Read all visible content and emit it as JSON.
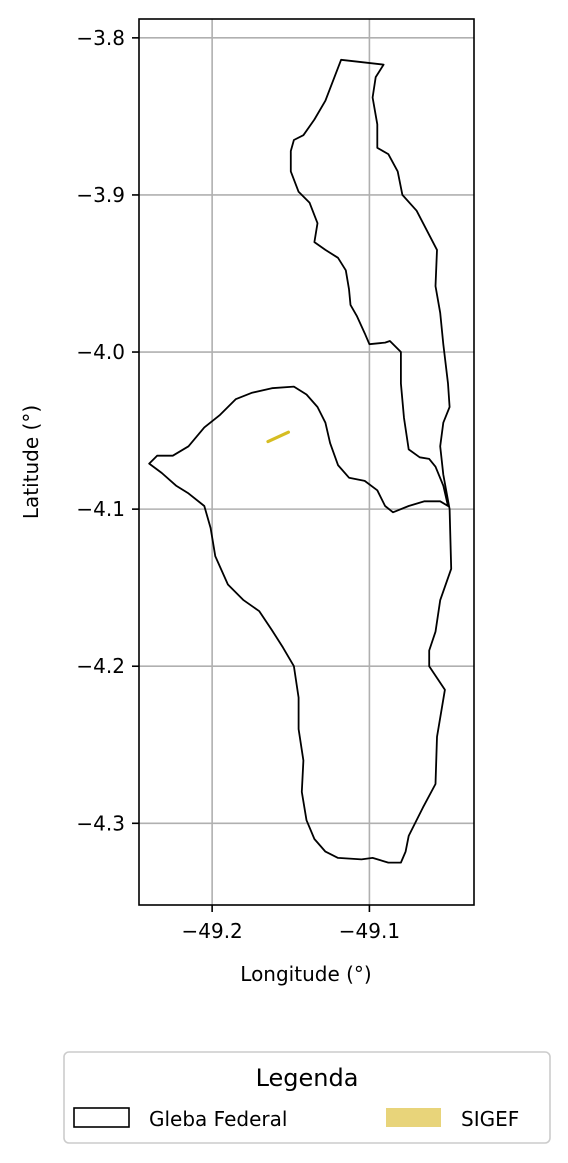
{
  "chart_data": {
    "type": "map",
    "xlabel": "Longitude (°)",
    "ylabel": "Latitude (°)",
    "xlim": [
      -49.2465,
      -49.0335
    ],
    "ylim": [
      -4.352,
      -3.788
    ],
    "x_ticks": [
      -49.2,
      -49.1
    ],
    "x_tick_labels": [
      "−49.2",
      "−49.1"
    ],
    "y_ticks": [
      -3.8,
      -3.9,
      -4.0,
      -4.1,
      -4.2,
      -4.3
    ],
    "y_tick_labels": [
      "−3.8",
      "−3.9",
      "−4.0",
      "−4.1",
      "−4.2",
      "−4.3"
    ],
    "grid": true,
    "legend": {
      "title": "Legenda",
      "placement": "bottom-center",
      "entries": [
        {
          "label": "Gleba Federal",
          "style": "outline",
          "color": "#000000"
        },
        {
          "label": "SIGEF",
          "style": "fill",
          "color": "#e8d47a"
        }
      ]
    },
    "layers": [
      {
        "name": "Gleba Federal",
        "stroke": "#000000",
        "fill": "none",
        "polygons": [
          [
            [
              -49.118,
              -3.814
            ],
            [
              -49.091,
              -3.817
            ],
            [
              -49.096,
              -3.825
            ],
            [
              -49.098,
              -3.838
            ],
            [
              -49.095,
              -3.855
            ],
            [
              -49.095,
              -3.87
            ],
            [
              -49.088,
              -3.874
            ],
            [
              -49.082,
              -3.885
            ],
            [
              -49.079,
              -3.9
            ],
            [
              -49.07,
              -3.91
            ],
            [
              -49.057,
              -3.935
            ],
            [
              -49.058,
              -3.958
            ],
            [
              -49.055,
              -3.975
            ],
            [
              -49.053,
              -3.995
            ],
            [
              -49.05,
              -4.02
            ],
            [
              -49.049,
              -4.035
            ],
            [
              -49.053,
              -4.045
            ],
            [
              -49.055,
              -4.06
            ],
            [
              -49.053,
              -4.078
            ],
            [
              -49.049,
              -4.1
            ],
            [
              -49.048,
              -4.138
            ],
            [
              -49.055,
              -4.158
            ],
            [
              -49.058,
              -4.178
            ],
            [
              -49.062,
              -4.19
            ],
            [
              -49.062,
              -4.2
            ],
            [
              -49.052,
              -4.215
            ],
            [
              -49.057,
              -4.245
            ],
            [
              -49.058,
              -4.275
            ],
            [
              -49.066,
              -4.29
            ],
            [
              -49.075,
              -4.308
            ],
            [
              -49.077,
              -4.318
            ],
            [
              -49.08,
              -4.325
            ],
            [
              -49.088,
              -4.325
            ],
            [
              -49.098,
              -4.322
            ],
            [
              -49.105,
              -4.323
            ],
            [
              -49.12,
              -4.322
            ],
            [
              -49.128,
              -4.318
            ],
            [
              -49.135,
              -4.31
            ],
            [
              -49.14,
              -4.298
            ],
            [
              -49.143,
              -4.28
            ],
            [
              -49.142,
              -4.26
            ],
            [
              -49.145,
              -4.24
            ],
            [
              -49.145,
              -4.22
            ],
            [
              -49.148,
              -4.2
            ],
            [
              -49.155,
              -4.188
            ],
            [
              -49.162,
              -4.177
            ],
            [
              -49.17,
              -4.165
            ],
            [
              -49.18,
              -4.158
            ],
            [
              -49.19,
              -4.148
            ],
            [
              -49.198,
              -4.13
            ],
            [
              -49.201,
              -4.112
            ],
            [
              -49.205,
              -4.098
            ],
            [
              -49.215,
              -4.09
            ],
            [
              -49.223,
              -4.085
            ],
            [
              -49.232,
              -4.077
            ],
            [
              -49.24,
              -4.071
            ],
            [
              -49.235,
              -4.066
            ],
            [
              -49.225,
              -4.066
            ],
            [
              -49.215,
              -4.06
            ],
            [
              -49.205,
              -4.048
            ],
            [
              -49.195,
              -4.04
            ],
            [
              -49.185,
              -4.03
            ],
            [
              -49.175,
              -4.026
            ],
            [
              -49.162,
              -4.023
            ],
            [
              -49.148,
              -4.022
            ],
            [
              -49.14,
              -4.027
            ],
            [
              -49.133,
              -4.035
            ],
            [
              -49.128,
              -4.045
            ],
            [
              -49.125,
              -4.058
            ],
            [
              -49.12,
              -4.072
            ],
            [
              -49.113,
              -4.08
            ],
            [
              -49.103,
              -4.082
            ],
            [
              -49.095,
              -4.088
            ],
            [
              -49.09,
              -4.098
            ],
            [
              -49.085,
              -4.102
            ],
            [
              -49.075,
              -4.098
            ],
            [
              -49.065,
              -4.095
            ],
            [
              -49.055,
              -4.095
            ],
            [
              -49.05,
              -4.098
            ],
            [
              -49.053,
              -4.085
            ],
            [
              -49.058,
              -4.073
            ],
            [
              -49.062,
              -4.068
            ],
            [
              -49.068,
              -4.067
            ],
            [
              -49.075,
              -4.062
            ],
            [
              -49.078,
              -4.042
            ],
            [
              -49.08,
              -4.02
            ],
            [
              -49.08,
              -4.0
            ],
            [
              -49.087,
              -3.993
            ],
            [
              -49.09,
              -3.994
            ],
            [
              -49.1,
              -3.995
            ],
            [
              -49.103,
              -3.988
            ],
            [
              -49.108,
              -3.977
            ],
            [
              -49.112,
              -3.97
            ],
            [
              -49.113,
              -3.96
            ],
            [
              -49.115,
              -3.948
            ],
            [
              -49.12,
              -3.94
            ],
            [
              -49.128,
              -3.935
            ],
            [
              -49.135,
              -3.93
            ],
            [
              -49.133,
              -3.918
            ],
            [
              -49.138,
              -3.905
            ],
            [
              -49.145,
              -3.898
            ],
            [
              -49.15,
              -3.885
            ],
            [
              -49.15,
              -3.872
            ],
            [
              -49.148,
              -3.865
            ],
            [
              -49.142,
              -3.862
            ],
            [
              -49.135,
              -3.852
            ],
            [
              -49.128,
              -3.84
            ],
            [
              -49.118,
              -3.814
            ]
          ]
        ]
      },
      {
        "name": "SIGEF",
        "stroke": "#d6bd22",
        "fill": "#e8d47a",
        "lines": [
          [
            [
              -49.1645,
              -4.057
            ],
            [
              -49.1515,
              -4.051
            ]
          ]
        ]
      }
    ]
  }
}
